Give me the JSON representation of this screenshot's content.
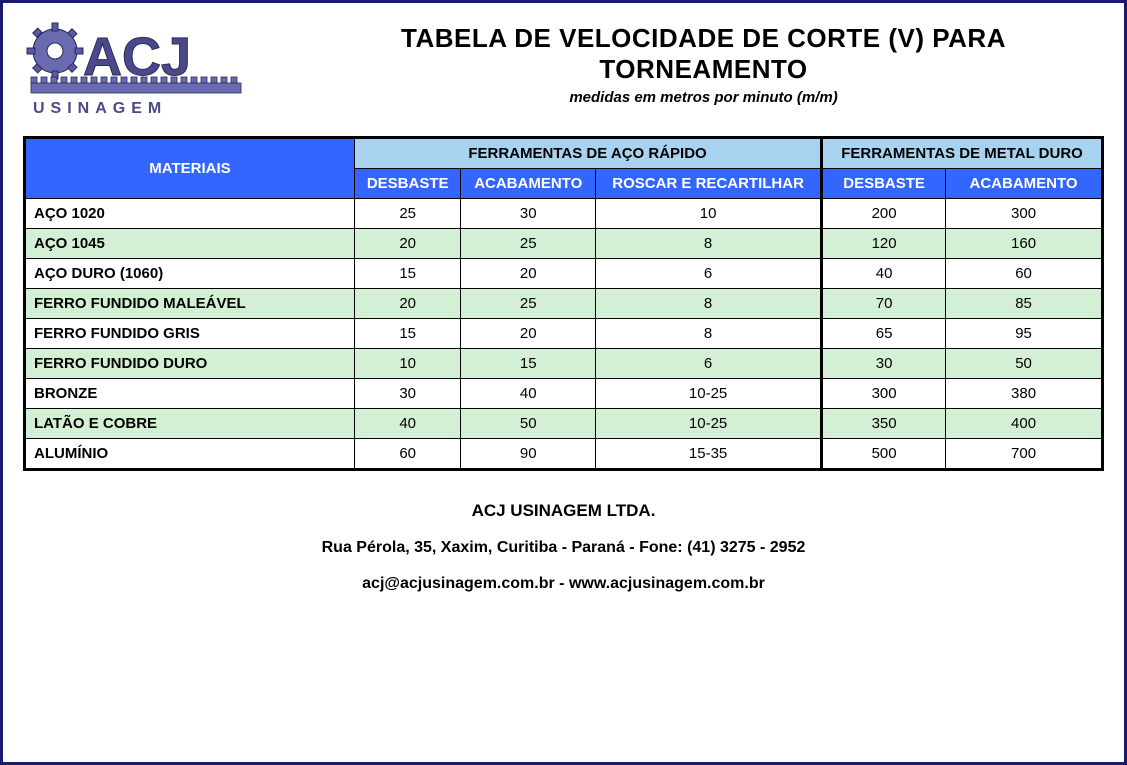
{
  "brand": {
    "name": "ACJ",
    "tagline": "USINAGEM",
    "logo_colors": {
      "gear": "#5a5aa0",
      "text": "#4a4a8a",
      "outline": "#2a2a5a"
    }
  },
  "title": "TABELA DE VELOCIDADE DE CORTE (V) PARA TORNEAMENTO",
  "subtitle": "medidas em metros por minuto (m/m)",
  "table": {
    "header_materiais": "MATERIAIS",
    "group1": "FERRAMENTAS DE AÇO RÁPIDO",
    "group2": "FERRAMENTAS DE METAL DURO",
    "sub": {
      "g1c1": "DESBASTE",
      "g1c2": "ACABAMENTO",
      "g1c3": "ROSCAR E RECARTILHAR",
      "g2c1": "DESBASTE",
      "g2c2": "ACABAMENTO"
    },
    "rows": [
      {
        "material": "AÇO 1020",
        "c1": "25",
        "c2": "30",
        "c3": "10",
        "c4": "200",
        "c5": "300"
      },
      {
        "material": "AÇO 1045",
        "c1": "20",
        "c2": "25",
        "c3": "8",
        "c4": "120",
        "c5": "160"
      },
      {
        "material": "AÇO DURO (1060)",
        "c1": "15",
        "c2": "20",
        "c3": "6",
        "c4": "40",
        "c5": "60"
      },
      {
        "material": "FERRO FUNDIDO MALEÁVEL",
        "c1": "20",
        "c2": "25",
        "c3": "8",
        "c4": "70",
        "c5": "85"
      },
      {
        "material": "FERRO FUNDIDO GRIS",
        "c1": "15",
        "c2": "20",
        "c3": "8",
        "c4": "65",
        "c5": "95"
      },
      {
        "material": "FERRO FUNDIDO DURO",
        "c1": "10",
        "c2": "15",
        "c3": "6",
        "c4": "30",
        "c5": "50"
      },
      {
        "material": "BRONZE",
        "c1": "30",
        "c2": "40",
        "c3": "10-25",
        "c4": "300",
        "c5": "380"
      },
      {
        "material": "LATÃO E COBRE",
        "c1": "40",
        "c2": "50",
        "c3": "10-25",
        "c4": "350",
        "c5": "400"
      },
      {
        "material": "ALUMÍNIO",
        "c1": "60",
        "c2": "90",
        "c3": "15-35",
        "c4": "500",
        "c5": "700"
      }
    ],
    "colors": {
      "header_blue": "#3366ff",
      "group_blue": "#a8d3f0",
      "row_even": "#d4f0d4",
      "row_odd": "#ffffff",
      "border": "#000000"
    }
  },
  "footer": {
    "company": "ACJ USINAGEM LTDA.",
    "address": "Rua Pérola, 35, Xaxim, Curitiba - Paraná - Fone: (41) 3275 - 2952",
    "contact": "acj@acjusinagem.com.br  -  www.acjusinagem.com.br"
  }
}
